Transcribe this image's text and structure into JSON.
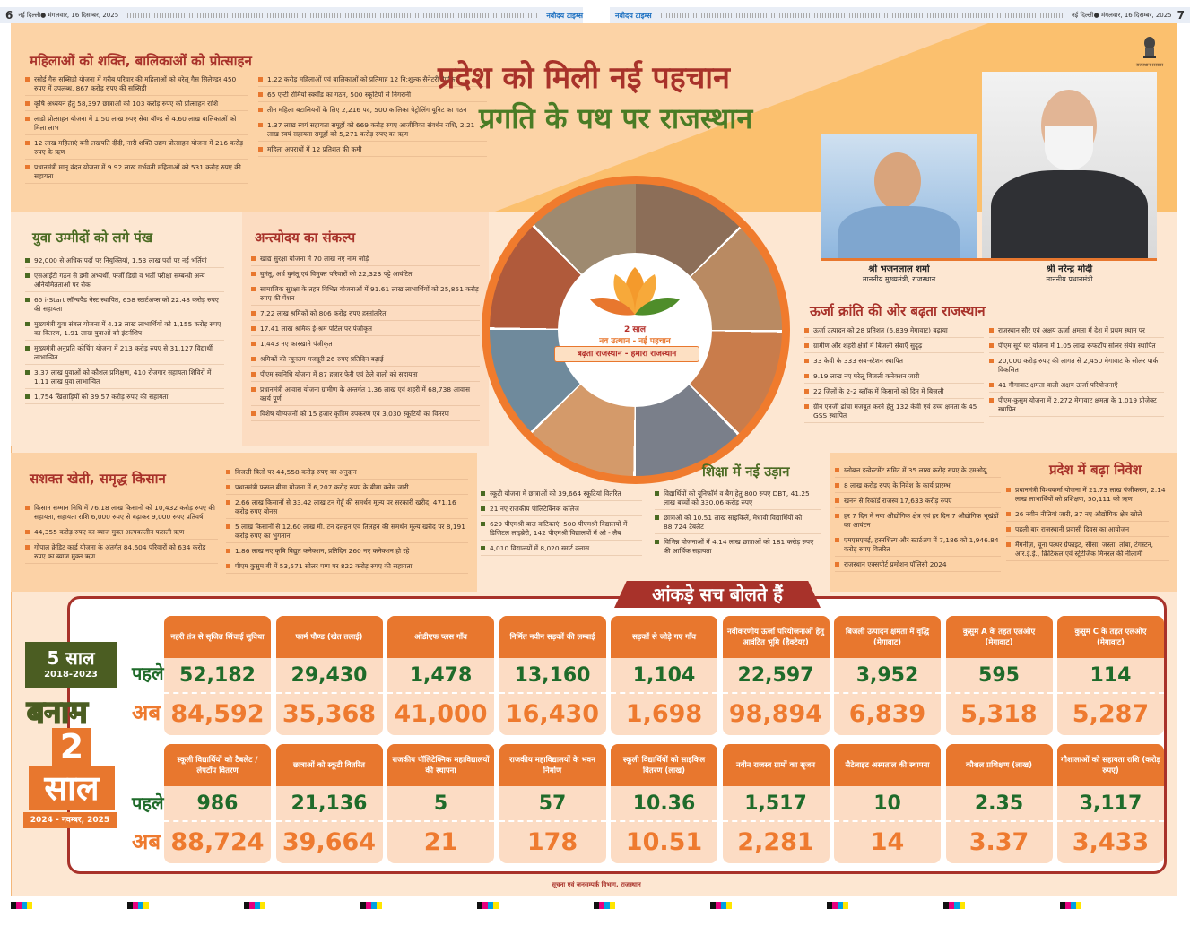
{
  "header_strip": {
    "left_page": "6",
    "left_dateline": "नई दिल्ली● मंगलवार, 16 दिसम्बर, 2025",
    "brand": "नवोदय टाइम्स",
    "right_dateline": "नई दिल्ली● मंगलवार, 16 दिसम्बर, 2025",
    "right_page": "7"
  },
  "headline": {
    "title": "प्रदेश को मिली नई पहचान",
    "subtitle": "प्रगति के पथ पर राजस्थान"
  },
  "emblem_text": "राजस्थान सरकार",
  "leaders": [
    {
      "name": "श्री भजनलाल शर्मा",
      "role": "माननीय मुख्यमंत्री, राजस्थान"
    },
    {
      "name": "श्री नरेन्द्र मोदी",
      "role": "माननीय प्रधानमंत्री"
    }
  ],
  "center_logo": {
    "years": "2 साल",
    "tagline": "नव उत्थान - नई पहचान",
    "slogan": "बढ़ता राजस्थान - हमारा राजस्थान"
  },
  "sections": {
    "women": {
      "title": "महिलाओं को शक्ति, बालिकाओं को प्रोत्साहन",
      "col1": [
        "रसोई गैस सब्सिडी योजना में गरीब परिवार की महिलाओं को घरेलू गैस सिलेण्डर 450 रुपए में उपलब्ध, 867 करोड़ रुपए की सब्सिडी",
        "कृषि अध्ययन हेतु 58,397 छात्राओं को 103 करोड़ रुपए की प्रोत्साहन राशि",
        "लाडो प्रोत्साहन योजना में 1.50 लाख रुपए सेवा बॉण्ड से 4.60 लाख बालिकाओं को मिला लाभ",
        "12 लाख महिलाएं बनी लखपति दीदी, नारी शक्ति उद्यम प्रोत्साहन योजना में 216 करोड़ रुपए के ऋण",
        "प्रधानमंत्री मातृ वंदन योजना में 9.92 लाख गर्भवती महिलाओं को 531 करोड़ रुपए की सहायता"
      ],
      "col2": [
        "1.22 करोड़ महिलाओं एवं बालिकाओं को प्रतिमाह 12 नि:शुल्क सैनेटरी नैपकिन",
        "65 एन्टी रोमियो स्क्वॉड का गठन, 500 स्कूटियों से निगरानी",
        "तीन महिला बटालियनों के लिए 2,216 पद, 500 कालिका पेट्रोलिंग यूनिट का गठन",
        "1.37 लाख स्वयं सहायता समूहों को 669 करोड़ रुपए आजीविका संवर्धन राशि, 2.21 लाख स्वयं सहायता समूहों को 5,271 करोड़ रुपए का ऋण",
        "महिला अपराधों में 12 प्रतिशत की कमी"
      ]
    },
    "youth": {
      "title": "युवा उम्मीदों को लगे पंख",
      "items": [
        "92,000 से अधिक पदों पर नियुक्तियां, 1.53 लाख पदों पर नई भर्तियां",
        "एसआईटी गठन से डमी अभ्यर्थी, फर्जी डिग्री व भर्ती परीक्षा सम्बन्धी अन्य अनियमितताओं पर रोक",
        "65 i-Start लॉन्चपैड नेस्ट स्थापित, 658 स्टार्टअप्स को 22.48 करोड़ रुपए की सहायता",
        "मुख्यमंत्री युवा संबल योजना में 4.13 लाख लाभार्थियों को 1,155 करोड़ रुपए का वितरण, 1.91 लाख युवाओं को इंटर्नशिप",
        "मुख्यमंत्री अनुप्रति कोचिंग योजना में 213 करोड़ रुपए से 31,127 विद्यार्थी लाभान्वित",
        "3.37 लाख युवाओं को कौशल प्रशिक्षण, 410 रोजगार सहायता शिविरों में 1.11 लाख युवा लाभान्वित",
        "1,754 खिलाड़ियों को 39.57 करोड़ रुपए की सहायता"
      ]
    },
    "antyodaya": {
      "title": "अन्त्योदय का संकल्प",
      "items": [
        "खाद्य सुरक्षा योजना में 70 लाख नए नाम जोड़े",
        "घुमंतू, अर्ध घुमंतू एवं विमुक्त परिवारों को 22,323 पट्टे आवंटित",
        "सामाजिक सुरक्षा के तहत विभिन्न योजनाओं में 91.61 लाख लाभार्थियों को 25,851 करोड़ रुपए की पेंशन",
        "7.22 लाख श्रमिकों को 806 करोड़ रुपए हस्तांतरित",
        "17.41 लाख श्रमिक ई-श्रम पोर्टल पर पंजीकृत",
        "1,443 नए कारखाने पंजीकृत",
        "श्रमिकों की न्यूनतम मजदूरी 26 रुपए प्रतिदिन बढ़ाई",
        "पीएम स्वनिधि योजना में 87 हजार फेरी एवं ठेले वालों को सहायता",
        "प्रधानमंत्री आवास योजना ग्रामीण के अन्तर्गत 1.36 लाख एवं शहरी में 68,738 आवास कार्य पूर्ण",
        "विशेष योग्यजनों को 15 हजार कृत्रिम उपकरण एवं 3,030 स्कूटियों का वितरण"
      ]
    },
    "energy": {
      "title": "ऊर्जा क्रांति की ओर बढ़ता राजस्थान",
      "col1": [
        "ऊर्जा उत्पादन को 28 प्रतिशत (6,839 मेगावाट) बढ़ाया",
        "ग्रामीण और शहरी क्षेत्रों में बिजली सेवाएँ सुदृढ़",
        "33 केवी के 333 सब-स्टेशन स्थापित",
        "9.19 लाख नए घरेलू बिजली कनेक्शन जारी",
        "22 जिलों के 2-2 ब्लॉक में किसानों को दिन में बिजली",
        "ग्रीन एनर्जी ढांचा मजबूत करने हेतु 132 केवी एवं उच्च क्षमता के 45 GSS स्थापित"
      ],
      "col2": [
        "राजस्थान सौर एवं अक्षय ऊर्जा क्षमता में देश में प्रथम स्थान पर",
        "पीएम सूर्य घर योजना में 1.05 लाख रूफटॉप सोलर संयंत्र स्थापित",
        "20,000 करोड़ रुपए की लागत से 2,450 मेगावाट के सोलर पार्क विकसित",
        "41 गीगावाट क्षमता वाली अक्षय ऊर्जा परियोजनाएँ",
        "पीएम-कुसुम योजना में 2,272 मेगावाट क्षमता के 1,019 प्रोजेक्ट स्थापित"
      ]
    },
    "farmers": {
      "title": "सशक्त खेती, समृद्ध किसान",
      "col1": [
        "किसान सम्मान निधि में 76.18 लाख किसानों को 10,432 करोड़ रुपए की सहायता, सहायता राशि 6,000 रुपए से बढ़ाकर 9,000 रुपए प्रतिवर्ष",
        "44,355 करोड़ रुपए का ब्याज मुक्त अल्पकालीन फसली ऋण",
        "गोपाल क्रेडिट कार्ड योजना के अंतर्गत 84,604 परिवारों को 634 करोड़ रुपए का ब्याज मुक्त ऋण"
      ],
      "col2": [
        "बिजली बिलों पर 44,558 करोड़ रुपए का अनुदान",
        "प्रधानमंत्री फसल बीमा योजना में 6,207 करोड़ रुपए के बीमा क्लेम जारी",
        "2.66 लाख किसानों से 33.42 लाख टन गेहूँ की समर्थन मूल्य पर सरकारी खरीद, 471.16 करोड़ रुपए बोनस",
        "5 लाख किसानों से 12.60 लाख मी. टन दलहन एवं तिलहन की समर्थन मूल्य खरीद पर 8,191 करोड़ रुपए का भुगतान",
        "1.86 लाख नए कृषि विद्युत कनेक्शन, प्रतिदिन 260 नए कनेक्शन हो रहे",
        "पीएम कुसुम बी में 53,571 सोलर पम्प पर 822 करोड़ रुपए की सहायता"
      ]
    },
    "education": {
      "title": "शिक्षा में नई उड़ान",
      "col1": [
        "स्कूटी योजना में छात्राओं को 39,664 स्कूटियां वितरित",
        "21 नए राजकीय पॉलिटेक्निक कॉलेज",
        "629 पीएमश्री बाल वाटिकाएं, 500 पीएमश्री विद्यालयों में डिजिटल लाइब्रेरी, 142 पीएमश्री विद्यालयों में ओ - लैब",
        "4,010 विद्यालयों में 8,020 स्मार्ट क्लास"
      ],
      "col2": [
        "विद्यार्थियों को यूनिफॉर्म व बैग हेतु 800 रुपए DBT, 41.25 लाख बच्चों को 330.06 करोड़ रुपए",
        "छात्राओं को 10.51 लाख साइकिलें, मेधावी विद्यार्थियों को 88,724 टैबलेट",
        "विभिन्न योजनाओं में 4.14 लाख छात्राओं को 181 करोड़ रुपए की आर्थिक सहायता"
      ]
    },
    "investment": {
      "title": "प्रदेश में बढ़ा निवेश",
      "col1": [
        "ग्लोबल इन्वेस्टमेंट समिट में 35 लाख करोड़ रुपए के एमओयू",
        "8 लाख करोड़ रुपए के निवेश के कार्य प्रारम्भ",
        "खनन से रिकॉर्ड राजस्व 17,633 करोड़ रुपए",
        "हर 7 दिन में नया औद्योगिक क्षेत्र एवं हर दिन 7 औद्योगिक भूखंडों का आवंटन",
        "एमएसएमई, हस्तशिल्प और स्टार्टअप में 7,186 को 1,946.84 करोड़ रुपए वितरित",
        "राजस्थान एक्सपोर्ट प्रमोशन पॉलिसी 2024"
      ],
      "col2": [
        "प्रधानमंत्री विश्वकर्मा योजना में 21.73 लाख पंजीकरण, 2.14 लाख लाभार्थियों को प्रशिक्षण, 50,111 को ऋण",
        "26 नवीन नीतियां जारी, 37 नए औद्योगिक क्षेत्र खोले",
        "पहली बार राजस्थानी प्रवासी दिवस का आयोजन",
        "मैंगनीज़, चूना पत्थर ग्रेफाइट, सीसा, जस्ता, तांबा, टंगस्टन, आर.ई.ई., क्रिटिकल एवं स्ट्रेटेजिक मिनरल की नीलामी"
      ]
    }
  },
  "stats": {
    "banner": "आंकड़े सच बोलते हैं",
    "before_label": "पहले",
    "now_label": "अब",
    "period_old": {
      "title": "5 साल",
      "range": "2018-2023"
    },
    "versus": "बनाम",
    "period_new": {
      "title_num": "2",
      "title_word": "साल",
      "range": "2024 - नवम्बर, 2025"
    },
    "row1": [
      {
        "label": "नहरी तंत्र से सृजित सिंचाई सुविधा",
        "before": "52,182",
        "now": "84,592"
      },
      {
        "label": "फार्म पौण्ड (खेत तलाई)",
        "before": "29,430",
        "now": "35,368"
      },
      {
        "label": "ओडीएफ प्लस गाँव",
        "before": "1,478",
        "now": "41,000"
      },
      {
        "label": "निर्मित नवीन सड़कों की लम्बाई",
        "before": "13,160",
        "now": "16,430"
      },
      {
        "label": "सड़कों से जोड़े गए गाँव",
        "before": "1,104",
        "now": "1,698"
      },
      {
        "label": "नवीकरणीय ऊर्जा परियोजनाओं हेतु आवंटित भूमि (हैक्टेयर)",
        "before": "22,597",
        "now": "98,894"
      },
      {
        "label": "बिजली उत्पादन क्षमता में वृद्धि (मेगावाट)",
        "before": "3,952",
        "now": "6,839"
      },
      {
        "label": "कुसुम A के तहत एलओए (मेगावाट)",
        "before": "595",
        "now": "5,318"
      },
      {
        "label": "कुसुम C के तहत एलओए (मेगावाट)",
        "before": "114",
        "now": "5,287"
      }
    ],
    "row2": [
      {
        "label": "स्कूली विद्यार्थियों को टैबलेट / लेपटॉप वितरण",
        "before": "986",
        "now": "88,724"
      },
      {
        "label": "छात्राओं को स्कूटी वितरित",
        "before": "21,136",
        "now": "39,664"
      },
      {
        "label": "राजकीय पॉलिटेक्निक महाविद्यालयों की स्थापना",
        "before": "5",
        "now": "21"
      },
      {
        "label": "राजकीय महाविद्यालयों के भवन निर्माण",
        "before": "57",
        "now": "178"
      },
      {
        "label": "स्कूली विद्यार्थियों को साइकिल वितरण (लाख)",
        "before": "10.36",
        "now": "10.51"
      },
      {
        "label": "नवीन राजस्व ग्रामों का सृजन",
        "before": "1,517",
        "now": "2,281"
      },
      {
        "label": "सैटेलाइट अस्पताल की स्थापना",
        "before": "10",
        "now": "14"
      },
      {
        "label": "कौशल प्रशिक्षण (लाख)",
        "before": "2.35",
        "now": "3.37"
      },
      {
        "label": "गौशालाओं को सहायता राशि (करोड़ रुपए)",
        "before": "3,117",
        "now": "3,433"
      }
    ]
  },
  "footer": "सूचना एवं जनसम्पर्क विभाग, राजस्थान",
  "colors": {
    "red": "#a8322a",
    "green": "#4a7c25",
    "orange": "#e8772e",
    "peach": "#fde7d2"
  }
}
